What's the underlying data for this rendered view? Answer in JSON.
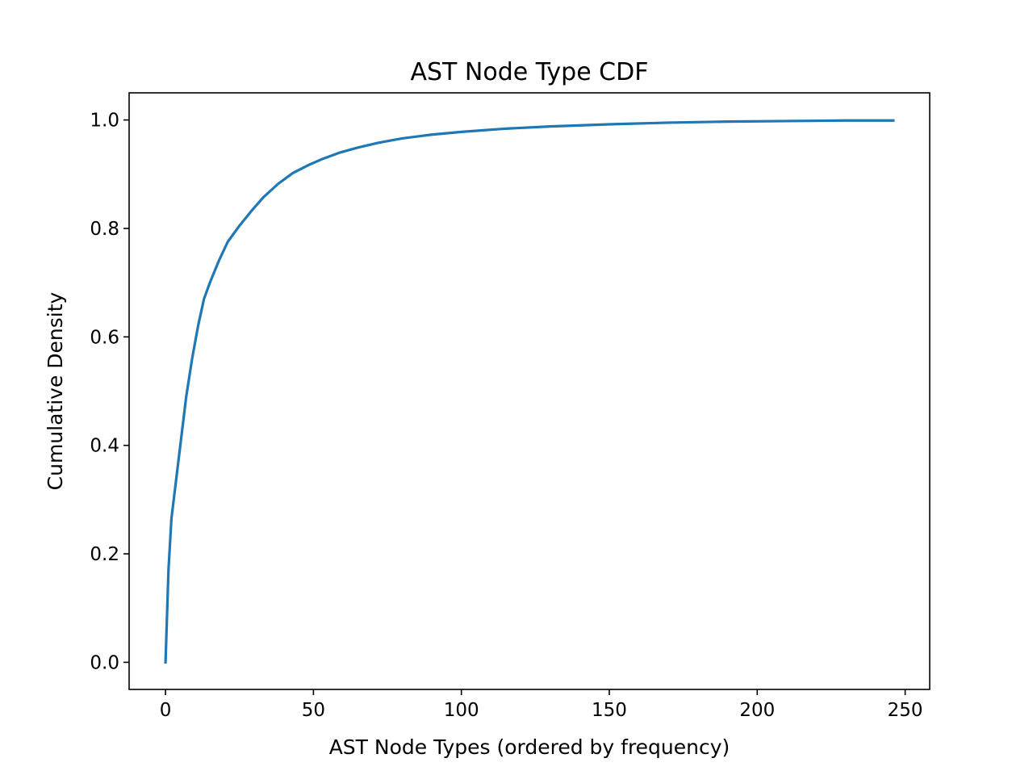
{
  "chart_data": {
    "type": "line",
    "title": "AST Node Type CDF",
    "xlabel": "AST Node Types (ordered by frequency)",
    "ylabel": "Cumulative Density",
    "xlim": [
      -12.3,
      258.3
    ],
    "ylim": [
      -0.05,
      1.05
    ],
    "xticks": [
      0,
      50,
      100,
      150,
      200,
      250
    ],
    "xtick_labels": [
      "0",
      "50",
      "100",
      "150",
      "200",
      "250"
    ],
    "yticks": [
      0.0,
      0.2,
      0.4,
      0.6,
      0.8,
      1.0
    ],
    "ytick_labels": [
      "0.0",
      "0.2",
      "0.4",
      "0.6",
      "0.8",
      "1.0"
    ],
    "grid": false,
    "series": [
      {
        "color": "#1f77b4",
        "x": [
          0,
          1,
          2,
          3,
          5,
          7,
          9,
          11,
          13,
          15,
          18,
          21,
          25,
          29,
          33,
          38,
          43,
          48,
          53,
          59,
          65,
          72,
          80,
          90,
          100,
          115,
          130,
          150,
          170,
          190,
          210,
          230,
          246
        ],
        "y": [
          0.0,
          0.17,
          0.265,
          0.31,
          0.4,
          0.49,
          0.56,
          0.62,
          0.67,
          0.7,
          0.74,
          0.775,
          0.805,
          0.832,
          0.857,
          0.882,
          0.902,
          0.916,
          0.928,
          0.94,
          0.949,
          0.958,
          0.966,
          0.973,
          0.978,
          0.984,
          0.988,
          0.992,
          0.995,
          0.997,
          0.998,
          0.999,
          0.999
        ]
      }
    ]
  }
}
